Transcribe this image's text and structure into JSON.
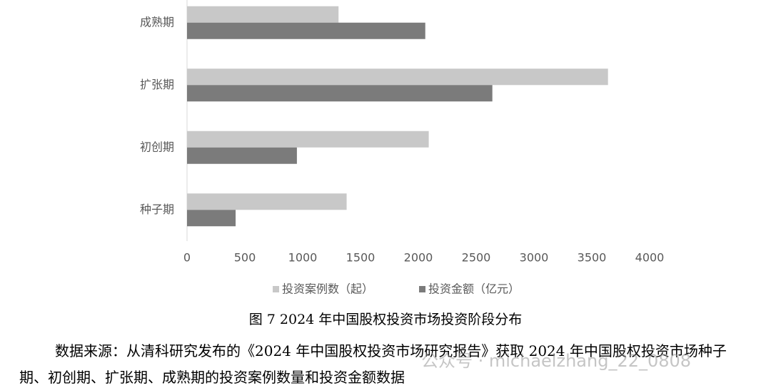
{
  "chart_data": {
    "type": "hbar",
    "categories": [
      "成熟期",
      "扩张期",
      "初创期",
      "种子期"
    ],
    "series": [
      {
        "name": "投资案例数（起）",
        "color": "#c8c8c8",
        "values": [
          1310,
          3640,
          2090,
          1380
        ]
      },
      {
        "name": "投资金额（亿元）",
        "color": "#7b7b7b",
        "values": [
          2060,
          2640,
          950,
          420
        ]
      }
    ],
    "xlim": [
      0,
      4000
    ],
    "xticks": [
      0,
      500,
      1000,
      1500,
      2000,
      2500,
      3000,
      3500,
      4000
    ],
    "grid": false,
    "legend": "bottom"
  },
  "caption": "图 7 2024 年中国股权投资市场投资阶段分布",
  "source": "数据来源：从清科研究发布的《2024 年中国股权投资市场研究报告》获取 2024 年中国股权投资市场种子期、初创期、扩张期、成熟期的投资案例数量和投资金额数据",
  "watermark": "公众号 · michaelzhang_22_0808"
}
